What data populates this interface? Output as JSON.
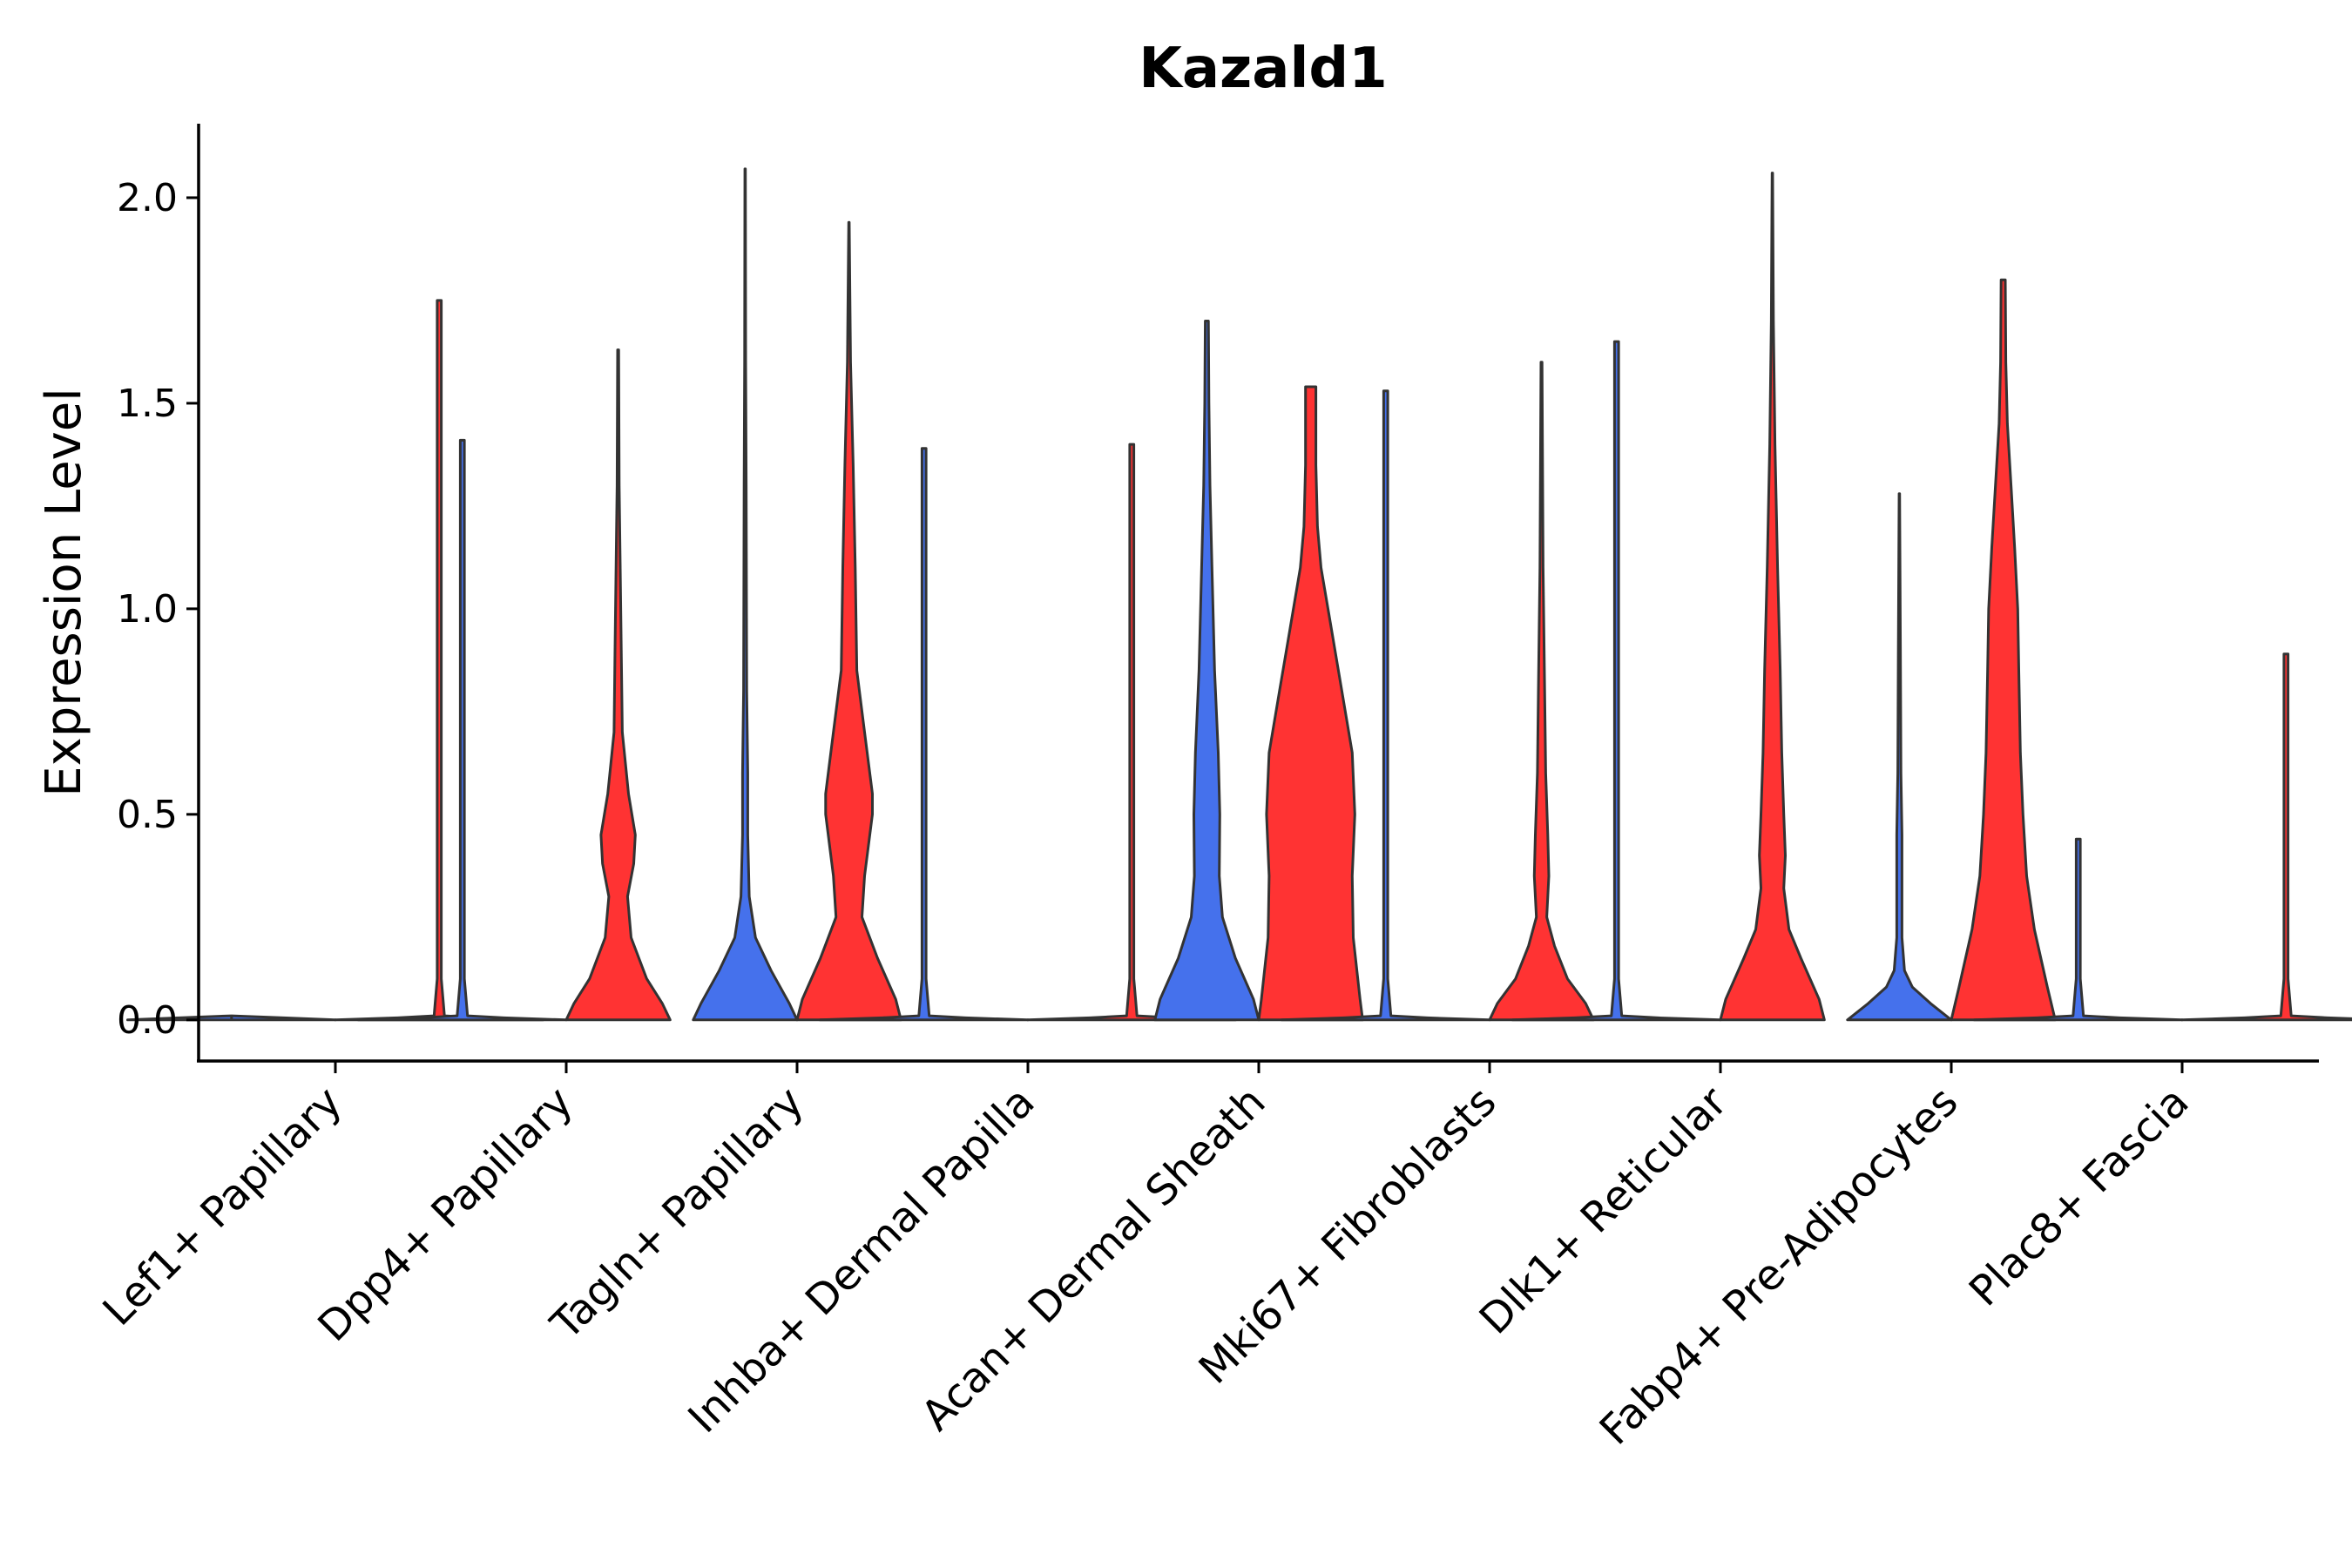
{
  "chart_data": {
    "type": "violin",
    "title": "Kazald1",
    "xlabel": "",
    "ylabel": "Expression Level",
    "ylim": [
      -0.1,
      2.18
    ],
    "yticks": [
      0.0,
      0.5,
      1.0,
      1.5,
      2.0
    ],
    "ytick_labels": [
      "0.0",
      "0.5",
      "1.0",
      "1.5",
      "2.0"
    ],
    "grid": false,
    "legend": "none",
    "groups": [
      "Lef1+ Papillary",
      "Dpp4+ Papillary",
      "Tagln+ Papillary",
      "Inhba+ Dermal Papilla",
      "Acan+ Dermal Sheath",
      "Mki67+ Fibroblasts",
      "Dlk1+ Reticular",
      "Fabp4+ Pre-Adipocytes",
      "Plac8+ Fascia"
    ],
    "split_colors": [
      "#4571EC",
      "#FF3333"
    ],
    "violins": [
      {
        "group": 0,
        "side": "left",
        "color": "#4571EC",
        "max": 0.0,
        "width": 0.9,
        "profile": [
          [
            0,
            1.0
          ],
          [
            0.005,
            0.5
          ],
          [
            0.01,
            0.0
          ]
        ]
      },
      {
        "group": 0,
        "side": "right",
        "color": "#FF3333",
        "max": 1.75,
        "width": 0.9,
        "profile": [
          [
            0,
            1.0
          ],
          [
            0.005,
            0.4
          ],
          [
            0.01,
            0.05
          ],
          [
            0.1,
            0.02
          ],
          [
            1.75,
            0.02
          ]
        ]
      },
      {
        "group": 1,
        "side": "left",
        "color": "#4571EC",
        "max": 1.41,
        "width": 0.9,
        "profile": [
          [
            0,
            1.0
          ],
          [
            0.005,
            0.4
          ],
          [
            0.01,
            0.05
          ],
          [
            0.1,
            0.02
          ],
          [
            1.41,
            0.02
          ]
        ]
      },
      {
        "group": 1,
        "side": "right",
        "color": "#FF3333",
        "max": 1.63,
        "width": 0.45,
        "profile": [
          [
            0,
            1.0
          ],
          [
            0.04,
            0.85
          ],
          [
            0.1,
            0.55
          ],
          [
            0.2,
            0.25
          ],
          [
            0.3,
            0.18
          ],
          [
            0.38,
            0.3
          ],
          [
            0.45,
            0.33
          ],
          [
            0.55,
            0.2
          ],
          [
            0.7,
            0.08
          ],
          [
            0.9,
            0.06
          ],
          [
            1.3,
            0.02
          ],
          [
            1.63,
            0.01
          ]
        ]
      },
      {
        "group": 2,
        "side": "left",
        "color": "#4571EC",
        "max": 2.07,
        "width": 0.45,
        "profile": [
          [
            0,
            1.0
          ],
          [
            0.04,
            0.85
          ],
          [
            0.12,
            0.5
          ],
          [
            0.2,
            0.2
          ],
          [
            0.3,
            0.08
          ],
          [
            0.45,
            0.05
          ],
          [
            0.6,
            0.05
          ],
          [
            0.8,
            0.03
          ],
          [
            1.3,
            0.02
          ],
          [
            1.6,
            0.01
          ],
          [
            2.07,
            0.005
          ]
        ]
      },
      {
        "group": 2,
        "side": "right",
        "color": "#FF3333",
        "max": 1.94,
        "width": 0.45,
        "profile": [
          [
            0,
            1.0
          ],
          [
            0.05,
            0.9
          ],
          [
            0.15,
            0.55
          ],
          [
            0.25,
            0.25
          ],
          [
            0.35,
            0.3
          ],
          [
            0.5,
            0.45
          ],
          [
            0.55,
            0.45
          ],
          [
            0.7,
            0.3
          ],
          [
            0.85,
            0.15
          ],
          [
            1.1,
            0.12
          ],
          [
            1.35,
            0.08
          ],
          [
            1.6,
            0.03
          ],
          [
            1.94,
            0.005
          ]
        ]
      },
      {
        "group": 3,
        "side": "left",
        "color": "#4571EC",
        "max": 1.39,
        "width": 0.9,
        "profile": [
          [
            0,
            1.0
          ],
          [
            0.005,
            0.4
          ],
          [
            0.01,
            0.05
          ],
          [
            0.1,
            0.02
          ],
          [
            1.39,
            0.02
          ]
        ]
      },
      {
        "group": 3,
        "side": "right",
        "color": "#FF3333",
        "max": 1.4,
        "width": 0.9,
        "profile": [
          [
            0,
            1.0
          ],
          [
            0.005,
            0.4
          ],
          [
            0.01,
            0.05
          ],
          [
            0.1,
            0.02
          ],
          [
            1.4,
            0.02
          ]
        ]
      },
      {
        "group": 4,
        "side": "left",
        "color": "#4571EC",
        "max": 1.7,
        "width": 0.45,
        "profile": [
          [
            0,
            1.0
          ],
          [
            0.05,
            0.9
          ],
          [
            0.15,
            0.55
          ],
          [
            0.25,
            0.3
          ],
          [
            0.35,
            0.24
          ],
          [
            0.5,
            0.25
          ],
          [
            0.65,
            0.22
          ],
          [
            0.85,
            0.15
          ],
          [
            1.1,
            0.1
          ],
          [
            1.3,
            0.06
          ],
          [
            1.5,
            0.04
          ],
          [
            1.7,
            0.03
          ]
        ]
      },
      {
        "group": 4,
        "side": "right",
        "color": "#FF3333",
        "max": 1.54,
        "width": 0.45,
        "profile": [
          [
            0,
            1.0
          ],
          [
            0.05,
            0.95
          ],
          [
            0.2,
            0.82
          ],
          [
            0.35,
            0.8
          ],
          [
            0.5,
            0.85
          ],
          [
            0.65,
            0.8
          ],
          [
            0.8,
            0.6
          ],
          [
            0.95,
            0.4
          ],
          [
            1.1,
            0.2
          ],
          [
            1.2,
            0.13
          ],
          [
            1.35,
            0.1
          ],
          [
            1.54,
            0.1
          ]
        ]
      },
      {
        "group": 5,
        "side": "left",
        "color": "#4571EC",
        "max": 1.53,
        "width": 0.9,
        "profile": [
          [
            0,
            1.0
          ],
          [
            0.005,
            0.4
          ],
          [
            0.01,
            0.05
          ],
          [
            0.1,
            0.02
          ],
          [
            1.53,
            0.02
          ]
        ]
      },
      {
        "group": 5,
        "side": "right",
        "color": "#FF3333",
        "max": 1.6,
        "width": 0.45,
        "profile": [
          [
            0,
            1.0
          ],
          [
            0.04,
            0.85
          ],
          [
            0.1,
            0.5
          ],
          [
            0.18,
            0.25
          ],
          [
            0.25,
            0.1
          ],
          [
            0.35,
            0.14
          ],
          [
            0.45,
            0.12
          ],
          [
            0.6,
            0.08
          ],
          [
            0.8,
            0.06
          ],
          [
            1.1,
            0.03
          ],
          [
            1.6,
            0.01
          ]
        ]
      },
      {
        "group": 6,
        "side": "left",
        "color": "#4571EC",
        "max": 1.65,
        "width": 0.9,
        "profile": [
          [
            0,
            1.0
          ],
          [
            0.005,
            0.4
          ],
          [
            0.01,
            0.05
          ],
          [
            0.1,
            0.02
          ],
          [
            1.65,
            0.02
          ]
        ]
      },
      {
        "group": 6,
        "side": "right",
        "color": "#FF3333",
        "max": 2.06,
        "width": 0.45,
        "profile": [
          [
            0,
            1.0
          ],
          [
            0.05,
            0.9
          ],
          [
            0.15,
            0.55
          ],
          [
            0.22,
            0.32
          ],
          [
            0.32,
            0.22
          ],
          [
            0.4,
            0.25
          ],
          [
            0.5,
            0.22
          ],
          [
            0.65,
            0.18
          ],
          [
            0.85,
            0.15
          ],
          [
            1.1,
            0.1
          ],
          [
            1.4,
            0.05
          ],
          [
            1.7,
            0.02
          ],
          [
            2.06,
            0.005
          ]
        ]
      },
      {
        "group": 7,
        "side": "left",
        "color": "#4571EC",
        "max": 1.28,
        "width": 0.45,
        "profile": [
          [
            0,
            1.0
          ],
          [
            0.04,
            0.6
          ],
          [
            0.08,
            0.25
          ],
          [
            0.12,
            0.1
          ],
          [
            0.2,
            0.05
          ],
          [
            0.35,
            0.05
          ],
          [
            0.45,
            0.05
          ],
          [
            0.6,
            0.03
          ],
          [
            0.9,
            0.02
          ],
          [
            1.28,
            0.005
          ]
        ]
      },
      {
        "group": 7,
        "side": "right",
        "color": "#FF3333",
        "max": 1.8,
        "width": 0.45,
        "profile": [
          [
            0,
            1.0
          ],
          [
            0.08,
            0.85
          ],
          [
            0.22,
            0.6
          ],
          [
            0.35,
            0.45
          ],
          [
            0.5,
            0.38
          ],
          [
            0.65,
            0.33
          ],
          [
            0.85,
            0.3
          ],
          [
            1.0,
            0.28
          ],
          [
            1.15,
            0.22
          ],
          [
            1.3,
            0.15
          ],
          [
            1.45,
            0.08
          ],
          [
            1.6,
            0.05
          ],
          [
            1.8,
            0.04
          ]
        ]
      },
      {
        "group": 8,
        "side": "left",
        "color": "#4571EC",
        "max": 0.44,
        "width": 0.9,
        "profile": [
          [
            0,
            1.0
          ],
          [
            0.005,
            0.4
          ],
          [
            0.01,
            0.05
          ],
          [
            0.1,
            0.02
          ],
          [
            0.44,
            0.02
          ]
        ]
      },
      {
        "group": 8,
        "side": "right",
        "color": "#FF3333",
        "max": 0.89,
        "width": 0.9,
        "profile": [
          [
            0,
            1.0
          ],
          [
            0.005,
            0.4
          ],
          [
            0.01,
            0.05
          ],
          [
            0.1,
            0.02
          ],
          [
            0.89,
            0.02
          ]
        ]
      }
    ]
  }
}
